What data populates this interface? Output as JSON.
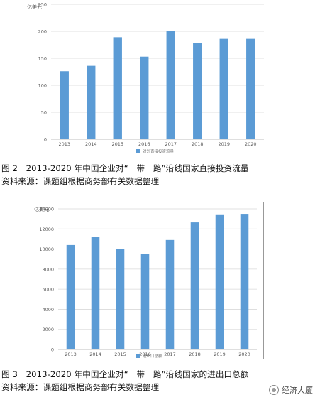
{
  "chart_data": [
    {
      "type": "bar",
      "title": "",
      "ylabel": "亿美元",
      "categories": [
        "2013",
        "2014",
        "2015",
        "2016",
        "2017",
        "2018",
        "2019",
        "2020"
      ],
      "series": [
        {
          "name": "对外直接投资流量",
          "values": [
            126,
            136,
            189,
            153,
            201,
            178,
            186,
            186
          ]
        }
      ],
      "ylim": [
        0,
        250
      ],
      "yticks": [
        0,
        50,
        100,
        150,
        200,
        250
      ],
      "grid": true,
      "legend": "bottom",
      "bar_color": "#5b9bd5"
    },
    {
      "type": "bar",
      "title": "",
      "ylabel": "亿美元",
      "categories": [
        "2013",
        "2014",
        "2015",
        "2016",
        "2017",
        "2018",
        "2019",
        "2020"
      ],
      "series": [
        {
          "name": "进出口总额",
          "values": [
            10400,
            11200,
            10000,
            9500,
            10900,
            12650,
            13450,
            13500
          ]
        }
      ],
      "ylim": [
        0,
        14000
      ],
      "yticks": [
        0,
        2000,
        4000,
        6000,
        8000,
        10000,
        12000,
        14000
      ],
      "grid": true,
      "legend": "bottom",
      "bar_color": "#5b9bd5"
    }
  ],
  "captions": {
    "fig2_title": "图 2　2013-2020 年中国企业对“一带一路”沿线国家直接投资流量",
    "fig2_source": "资料来源：课题组根据商务部有关数据整理",
    "fig3_title": "图 3　2013-2020 年中国企业对“一带一路”沿线国家的进出口总额",
    "fig3_source": "资料来源：课题组根据商务部有关数据整理"
  },
  "watermark": {
    "text": "经济大厦"
  }
}
